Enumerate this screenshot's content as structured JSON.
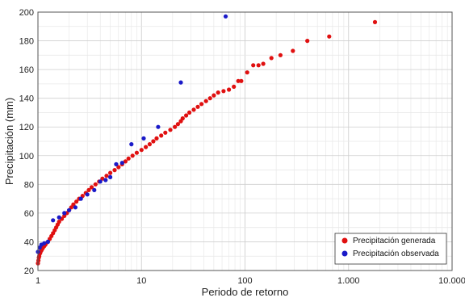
{
  "chart_data": {
    "type": "scatter",
    "title": "",
    "xlabel": "Periodo de retorno",
    "ylabel": "Precipitación (mm)",
    "xscale": "log",
    "xlim": [
      1,
      10000
    ],
    "ylim": [
      20,
      200
    ],
    "x_ticks": [
      {
        "value": 1,
        "label": "1"
      },
      {
        "value": 10,
        "label": "10"
      },
      {
        "value": 100,
        "label": "100"
      },
      {
        "value": 1000,
        "label": "1.000"
      },
      {
        "value": 10000,
        "label": "10.000"
      }
    ],
    "y_ticks": [
      20,
      40,
      60,
      80,
      100,
      120,
      140,
      160,
      180,
      200
    ],
    "grid": true,
    "legend_position": "bottom-right",
    "series": [
      {
        "name": "Precipitación generada",
        "color": "#e01010",
        "points": [
          [
            1.0,
            25
          ],
          [
            1.01,
            27
          ],
          [
            1.02,
            29
          ],
          [
            1.03,
            30
          ],
          [
            1.05,
            32
          ],
          [
            1.06,
            33
          ],
          [
            1.08,
            34
          ],
          [
            1.1,
            35
          ],
          [
            1.12,
            36
          ],
          [
            1.15,
            37
          ],
          [
            1.18,
            38
          ],
          [
            1.2,
            39
          ],
          [
            1.25,
            40
          ],
          [
            1.3,
            42
          ],
          [
            1.35,
            44
          ],
          [
            1.4,
            46
          ],
          [
            1.45,
            48
          ],
          [
            1.5,
            50
          ],
          [
            1.55,
            52
          ],
          [
            1.6,
            54
          ],
          [
            1.7,
            56
          ],
          [
            1.8,
            58
          ],
          [
            1.9,
            60
          ],
          [
            2.0,
            62
          ],
          [
            2.1,
            64
          ],
          [
            2.2,
            66
          ],
          [
            2.35,
            68
          ],
          [
            2.5,
            70
          ],
          [
            2.7,
            72
          ],
          [
            2.9,
            74
          ],
          [
            3.1,
            76
          ],
          [
            3.3,
            78
          ],
          [
            3.6,
            80
          ],
          [
            3.9,
            82
          ],
          [
            4.2,
            84
          ],
          [
            4.6,
            86
          ],
          [
            5.0,
            88
          ],
          [
            5.5,
            90
          ],
          [
            6.0,
            92
          ],
          [
            6.5,
            94
          ],
          [
            7.0,
            96
          ],
          [
            7.5,
            98
          ],
          [
            8.2,
            100
          ],
          [
            9.0,
            102
          ],
          [
            10,
            104
          ],
          [
            11,
            106
          ],
          [
            12,
            108
          ],
          [
            13,
            110
          ],
          [
            14,
            112
          ],
          [
            15.5,
            114
          ],
          [
            17,
            116
          ],
          [
            19,
            118
          ],
          [
            21,
            120
          ],
          [
            22.5,
            122
          ],
          [
            24,
            124
          ],
          [
            25,
            126
          ],
          [
            27,
            128
          ],
          [
            29,
            130
          ],
          [
            32,
            132
          ],
          [
            35,
            134
          ],
          [
            38,
            136
          ],
          [
            42,
            138
          ],
          [
            46,
            140
          ],
          [
            50,
            142
          ],
          [
            55,
            144
          ],
          [
            62,
            145
          ],
          [
            70,
            146
          ],
          [
            78,
            148
          ],
          [
            86,
            152
          ],
          [
            92,
            152
          ],
          [
            105,
            158
          ],
          [
            120,
            163
          ],
          [
            135,
            163
          ],
          [
            150,
            164
          ],
          [
            180,
            168
          ],
          [
            220,
            170
          ],
          [
            290,
            173
          ],
          [
            400,
            180
          ],
          [
            650,
            183
          ],
          [
            1800,
            193
          ]
        ]
      },
      {
        "name": "Precipitación observada",
        "color": "#1a1ac8",
        "points": [
          [
            1.0,
            33
          ],
          [
            1.04,
            36
          ],
          [
            1.08,
            38
          ],
          [
            1.15,
            39
          ],
          [
            1.25,
            40
          ],
          [
            1.4,
            55
          ],
          [
            1.6,
            57
          ],
          [
            1.8,
            60
          ],
          [
            2.0,
            62
          ],
          [
            2.3,
            64
          ],
          [
            2.6,
            70
          ],
          [
            3.0,
            73
          ],
          [
            3.5,
            76
          ],
          [
            4.0,
            82
          ],
          [
            4.5,
            83
          ],
          [
            5.0,
            85
          ],
          [
            5.7,
            94
          ],
          [
            6.5,
            95
          ],
          [
            8.0,
            108
          ],
          [
            10.5,
            112
          ],
          [
            14.5,
            120
          ],
          [
            24,
            151
          ],
          [
            65,
            197
          ]
        ]
      }
    ]
  }
}
